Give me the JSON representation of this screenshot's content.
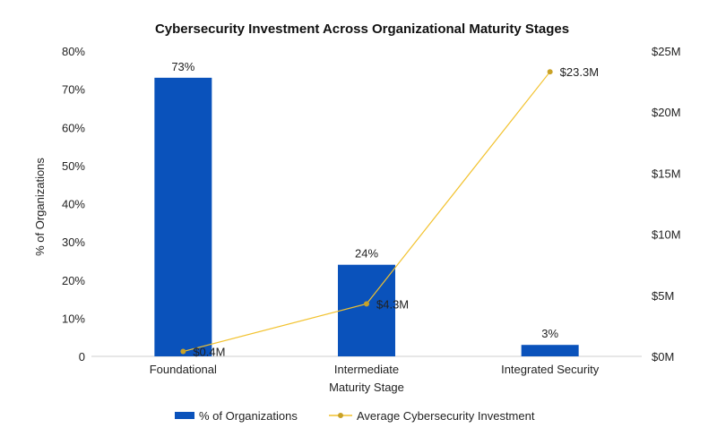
{
  "chart_data": {
    "type": "bar",
    "title": "Cybersecurity Investment Across Organizational Maturity Stages",
    "xlabel": "Maturity Stage",
    "ylabel": "% of Organizations",
    "categories": [
      "Foundational",
      "Intermediate",
      "Integrated Security"
    ],
    "y_ticks": [
      "0",
      "10%",
      "20%",
      "30%",
      "40%",
      "50%",
      "60%",
      "70%",
      "80%"
    ],
    "y2_ticks": [
      "$0M",
      "$5M",
      "$10M",
      "$15M",
      "$20M",
      "$25M"
    ],
    "ylim": [
      0,
      80
    ],
    "y2lim": [
      0,
      25
    ],
    "grid": false,
    "legend_position": "bottom",
    "series": [
      {
        "name": "% of Organizations",
        "type": "bar",
        "axis": "left",
        "values": [
          73,
          24,
          3
        ],
        "labels": [
          "73%",
          "24%",
          "3%"
        ],
        "color": "#0a52bb"
      },
      {
        "name": "Average Cybersecurity Investment",
        "type": "line",
        "axis": "right",
        "values": [
          0.4,
          4.3,
          23.3
        ],
        "labels": [
          "$0.4M",
          "$4.3M",
          "$23.3M"
        ],
        "color": "#f2c22e",
        "marker_color": "#c9a227"
      }
    ]
  }
}
